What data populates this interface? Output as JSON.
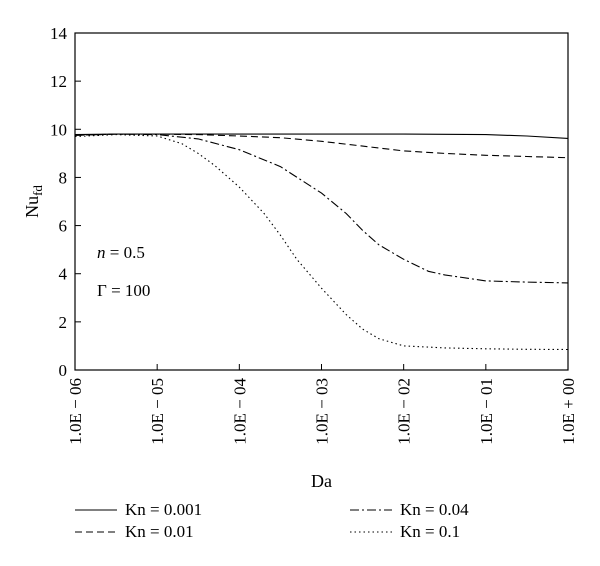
{
  "chart_data": {
    "type": "line",
    "xlabel": "Da",
    "ylabel": "Nu",
    "ylabel_sub": "fd",
    "x_scale": "log",
    "xlim": [
      1e-06,
      1
    ],
    "ylim": [
      0,
      14
    ],
    "y_ticks": [
      0,
      2,
      4,
      6,
      8,
      10,
      12,
      14
    ],
    "x_ticks": [
      1e-06,
      1e-05,
      0.0001,
      0.001,
      0.01,
      0.1,
      1
    ],
    "x_tick_labels": [
      "1.0E − 06",
      "1.0E − 05",
      "1.0E − 04",
      "1.0E − 03",
      "1.0E − 02",
      "1.0E − 01",
      "1.0E + 00"
    ],
    "grid": false,
    "legend_position": "bottom",
    "annotations": [
      "n = 0.5",
      "Γ = 100"
    ],
    "series": [
      {
        "name": "Kn = 0.001",
        "style": "solid",
        "x": [
          1e-06,
          3.16e-06,
          1e-05,
          3.16e-05,
          0.0001,
          0.000316,
          0.001,
          0.00316,
          0.01,
          0.0316,
          0.1,
          0.316,
          1
        ],
        "y": [
          9.78,
          9.8,
          9.8,
          9.8,
          9.8,
          9.8,
          9.8,
          9.8,
          9.8,
          9.79,
          9.78,
          9.72,
          9.62
        ]
      },
      {
        "name": "Kn = 0.01",
        "style": "dashed",
        "x": [
          1e-06,
          3.16e-06,
          1e-05,
          3.16e-05,
          0.0001,
          0.000316,
          0.001,
          0.00316,
          0.01,
          0.0316,
          0.1,
          0.316,
          1
        ],
        "y": [
          9.75,
          9.8,
          9.8,
          9.78,
          9.72,
          9.65,
          9.5,
          9.3,
          9.1,
          9.0,
          8.92,
          8.87,
          8.82
        ]
      },
      {
        "name": "Kn = 0.04",
        "style": "dashdot",
        "x": [
          1e-06,
          3.16e-06,
          1e-05,
          3.16e-05,
          0.0001,
          0.000316,
          0.001,
          0.002,
          0.00316,
          0.005,
          0.01,
          0.02,
          0.0316,
          0.1,
          0.316,
          1
        ],
        "y": [
          9.75,
          9.8,
          9.78,
          9.6,
          9.15,
          8.45,
          7.35,
          6.5,
          5.8,
          5.2,
          4.6,
          4.1,
          3.95,
          3.7,
          3.65,
          3.62
        ]
      },
      {
        "name": "Kn = 0.1",
        "style": "dotted",
        "x": [
          1e-06,
          3.16e-06,
          1e-05,
          2e-05,
          3.16e-05,
          5e-05,
          0.0001,
          0.0002,
          0.000316,
          0.0005,
          0.001,
          0.002,
          0.00316,
          0.005,
          0.01,
          0.02,
          0.0316,
          0.1,
          0.316,
          1
        ],
        "y": [
          9.7,
          9.78,
          9.72,
          9.4,
          9.0,
          8.5,
          7.6,
          6.5,
          5.6,
          4.6,
          3.4,
          2.3,
          1.7,
          1.3,
          1.0,
          0.95,
          0.92,
          0.88,
          0.86,
          0.85
        ]
      }
    ]
  }
}
